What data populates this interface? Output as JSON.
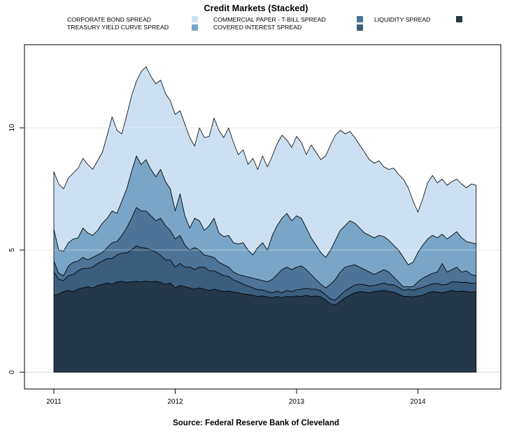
{
  "title": "Credit Markets (Stacked)",
  "source_caption": "Source: Federal Reserve Bank of Cleveland",
  "colors": {
    "background": "#ffffff",
    "axis": "#000000",
    "grid": "#d9d9d9",
    "grid_overlay": "rgba(255,255,255,0.4)",
    "outline": "#000000"
  },
  "legend": {
    "entries": [
      {
        "label": "CORPORATE BOND SPREAD",
        "color": "#cce0f2"
      },
      {
        "label": "TREASURY YIELD CURVE SPREAD",
        "color": "#79a6c8"
      },
      {
        "label": "COMMERCIAL PAPER - T-BILL SPREAD",
        "color": "#4c7499"
      },
      {
        "label": "COVERED INTEREST SPREAD",
        "color": "#3a5e7e"
      },
      {
        "label": "LIQUIDITY SPREAD",
        "color": "#25384a"
      }
    ]
  },
  "chart_data": {
    "type": "area",
    "stacked": true,
    "title": "Credit Markets (Stacked)",
    "xlabel": "",
    "ylabel": "",
    "x_start": 2011.0,
    "x_step": 0.04,
    "x_ticks": [
      2011,
      2012,
      2013,
      2014
    ],
    "x_tick_labels": [
      "2011",
      "2012",
      "2013",
      "2014"
    ],
    "y_ticks": [
      0,
      5,
      10
    ],
    "y_tick_labels": [
      "0",
      "5",
      "10"
    ],
    "xlim": [
      2010.758,
      2014.683
    ],
    "ylim": [
      -0.686,
      13.4
    ],
    "grid": true,
    "legend_position": "top",
    "series": [
      {
        "name": "LIQUIDITY SPREAD",
        "color": "#25384a",
        "values": [
          3.15,
          3.2,
          3.3,
          3.35,
          3.3,
          3.4,
          3.45,
          3.5,
          3.45,
          3.55,
          3.6,
          3.65,
          3.6,
          3.7,
          3.72,
          3.68,
          3.7,
          3.72,
          3.7,
          3.73,
          3.7,
          3.72,
          3.68,
          3.6,
          3.65,
          3.45,
          3.55,
          3.5,
          3.45,
          3.4,
          3.45,
          3.4,
          3.35,
          3.4,
          3.35,
          3.3,
          3.32,
          3.28,
          3.25,
          3.2,
          3.18,
          3.15,
          3.1,
          3.12,
          3.08,
          3.05,
          3.1,
          3.05,
          3.1,
          3.08,
          3.12,
          3.1,
          3.15,
          3.1,
          3.12,
          3.08,
          2.95,
          2.8,
          2.75,
          2.9,
          3.05,
          3.15,
          3.25,
          3.3,
          3.28,
          3.25,
          3.3,
          3.32,
          3.35,
          3.3,
          3.28,
          3.2,
          3.1,
          3.1,
          3.08,
          3.12,
          3.15,
          3.25,
          3.3,
          3.28,
          3.25,
          3.3,
          3.35,
          3.3,
          3.32,
          3.3,
          3.28,
          3.3
        ]
      },
      {
        "name": "COVERED INTEREST SPREAD",
        "color": "#3a5e7e",
        "values": [
          0.95,
          0.6,
          0.45,
          0.6,
          0.7,
          0.75,
          0.8,
          0.75,
          0.85,
          0.9,
          0.95,
          1.0,
          1.05,
          1.1,
          1.15,
          1.2,
          1.3,
          1.45,
          1.4,
          1.35,
          1.3,
          1.2,
          1.1,
          1.0,
          0.95,
          0.85,
          0.9,
          0.8,
          0.85,
          0.8,
          0.85,
          0.9,
          0.8,
          0.75,
          0.7,
          0.65,
          0.6,
          0.5,
          0.45,
          0.4,
          0.35,
          0.3,
          0.28,
          0.25,
          0.22,
          0.2,
          0.22,
          0.2,
          0.25,
          0.22,
          0.25,
          0.3,
          0.28,
          0.3,
          0.28,
          0.25,
          0.22,
          0.2,
          0.2,
          0.25,
          0.28,
          0.3,
          0.32,
          0.3,
          0.3,
          0.28,
          0.25,
          0.28,
          0.3,
          0.28,
          0.3,
          0.28,
          0.25,
          0.3,
          0.28,
          0.3,
          0.32,
          0.3,
          0.32,
          0.35,
          0.32,
          0.3,
          0.35,
          0.4,
          0.35,
          0.38,
          0.35,
          0.35
        ]
      },
      {
        "name": "COMMERCIAL PAPER - T-BILL SPREAD",
        "color": "#4c7499",
        "values": [
          0.45,
          0.25,
          0.2,
          0.4,
          0.5,
          0.4,
          0.45,
          0.35,
          0.4,
          0.35,
          0.35,
          0.45,
          0.65,
          0.55,
          0.73,
          1.02,
          1.3,
          1.57,
          1.5,
          1.52,
          1.4,
          1.28,
          1.52,
          1.4,
          1.2,
          1.15,
          1.15,
          0.9,
          0.7,
          0.9,
          0.7,
          0.5,
          0.6,
          0.55,
          0.45,
          0.45,
          0.38,
          0.32,
          0.3,
          0.35,
          0.37,
          0.4,
          0.42,
          0.38,
          0.4,
          0.55,
          0.68,
          0.95,
          0.95,
          0.9,
          0.93,
          0.95,
          0.77,
          0.6,
          0.4,
          0.27,
          0.28,
          0.6,
          0.85,
          0.95,
          0.97,
          0.9,
          0.83,
          0.7,
          0.62,
          0.57,
          0.45,
          0.5,
          0.55,
          0.52,
          0.32,
          0.22,
          0.15,
          0.1,
          0.14,
          0.28,
          0.38,
          0.4,
          0.43,
          0.47,
          0.88,
          0.5,
          0.5,
          0.6,
          0.43,
          0.47,
          0.37,
          0.3
        ]
      },
      {
        "name": "TREASURY YIELD CURVE SPREAD",
        "color": "#79a6c8",
        "values": [
          1.3,
          0.95,
          1.0,
          0.95,
          0.95,
          0.95,
          1.2,
          1.1,
          0.9,
          1.0,
          1.2,
          1.2,
          1.3,
          1.15,
          1.4,
          1.6,
          1.9,
          2.11,
          1.9,
          2.1,
          1.9,
          1.8,
          2.0,
          1.8,
          1.7,
          1.15,
          1.7,
          1.2,
          0.9,
          1.2,
          1.2,
          1.0,
          1.25,
          1.6,
          1.2,
          1.15,
          1.3,
          1.2,
          1.25,
          1.35,
          1.1,
          0.95,
          1.3,
          1.55,
          1.3,
          1.8,
          2.0,
          2.1,
          2.2,
          2.0,
          2.1,
          1.95,
          1.7,
          1.5,
          1.4,
          1.3,
          1.25,
          1.4,
          1.6,
          1.7,
          1.7,
          1.85,
          1.7,
          1.6,
          1.5,
          1.5,
          1.5,
          1.5,
          1.35,
          1.3,
          1.3,
          1.3,
          1.2,
          0.9,
          1.0,
          1.2,
          1.35,
          1.5,
          1.55,
          1.4,
          1.2,
          1.35,
          1.4,
          1.45,
          1.4,
          1.2,
          1.3,
          1.3
        ]
      },
      {
        "name": "CORPORATE BOND SPREAD",
        "color": "#cce0f2",
        "values": [
          2.35,
          2.7,
          2.55,
          2.65,
          2.7,
          2.85,
          2.85,
          2.8,
          2.7,
          2.85,
          2.9,
          3.4,
          3.85,
          3.4,
          2.75,
          3.0,
          3.1,
          3.05,
          3.8,
          3.8,
          3.8,
          3.8,
          3.65,
          3.6,
          3.6,
          3.95,
          3.4,
          3.75,
          3.7,
          2.95,
          3.8,
          3.8,
          3.65,
          4.1,
          4.2,
          4.05,
          4.4,
          4.1,
          3.65,
          3.8,
          3.5,
          3.95,
          3.2,
          3.55,
          3.4,
          3.25,
          3.35,
          3.4,
          3.0,
          3.0,
          3.25,
          3.1,
          3.0,
          3.8,
          3.8,
          3.8,
          4.15,
          4.3,
          4.3,
          4.1,
          3.75,
          3.65,
          3.5,
          3.4,
          3.3,
          3.1,
          3.05,
          3.05,
          2.85,
          2.9,
          3.15,
          3.1,
          3.2,
          3.15,
          2.5,
          1.65,
          1.9,
          2.3,
          2.45,
          2.25,
          2.25,
          2.2,
          2.2,
          2.15,
          2.2,
          2.2,
          2.4,
          2.4
        ]
      }
    ]
  }
}
